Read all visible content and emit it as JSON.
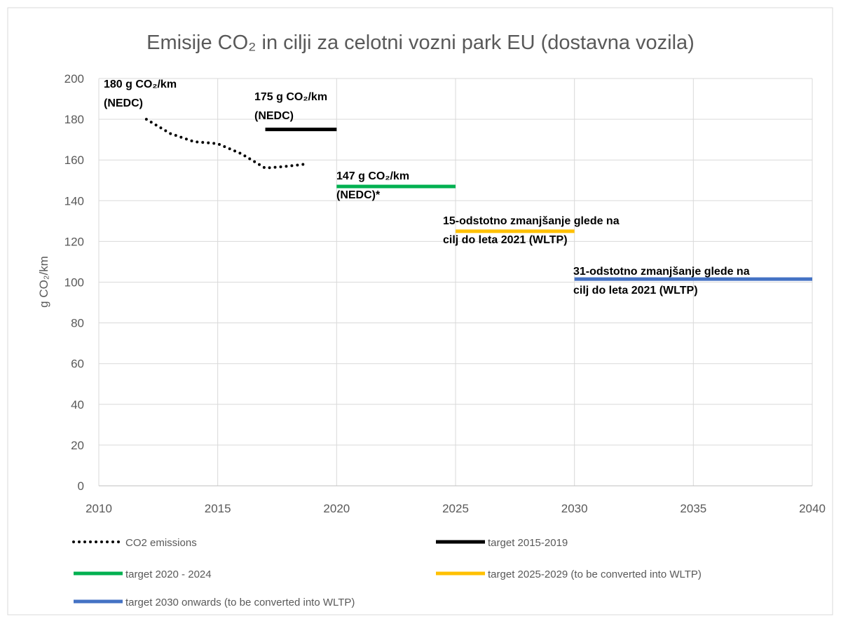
{
  "chart_data": {
    "type": "line",
    "title": "Emisije CO₂ in cilji za celotni vozni park EU (dostavna vozila)",
    "ylabel": "g CO₂/km",
    "series": [
      {
        "name": "CO2 emissions",
        "color": "#000000",
        "dash": "dotted",
        "x": [
          2012,
          2013,
          2014,
          2015,
          2016,
          2017,
          2018,
          2018.7
        ],
        "values": [
          180,
          173,
          169,
          168,
          163,
          156,
          157,
          158
        ]
      },
      {
        "name": "target 2015-2019",
        "color": "#000000",
        "x": [
          2017,
          2020
        ],
        "values": [
          175,
          175
        ]
      },
      {
        "name": "target 2020 - 2024",
        "color": "#00b050",
        "x": [
          2020,
          2025
        ],
        "values": [
          147,
          147
        ]
      },
      {
        "name": "target 2025-2029 (to be converted into WLTP)",
        "color": "#ffc000",
        "x": [
          2025,
          2030
        ],
        "values": [
          125,
          125
        ]
      },
      {
        "name": "target 2030 onwards (to be converted into WLTP)",
        "color": "#4472c4",
        "x": [
          2030,
          2040
        ],
        "values": [
          101.5,
          101.5
        ]
      }
    ],
    "annotations": [
      {
        "lines": [
          "180 g CO₂/km",
          "(NEDC)"
        ]
      },
      {
        "lines": [
          "175 g CO₂/km",
          "(NEDC)"
        ]
      },
      {
        "lines": [
          "147 g CO₂/km",
          "(NEDC)*"
        ]
      },
      {
        "lines": [
          "15-odstotno zmanjšanje glede na",
          "cilj do leta 2021 (WLTP)"
        ]
      },
      {
        "lines": [
          "31-odstotno zmanjšanje glede na",
          "cilj do leta 2021 (WLTP)"
        ]
      }
    ],
    "xlim": [
      2010,
      2040
    ],
    "xticks": [
      2010,
      2015,
      2020,
      2025,
      2030,
      2035,
      2040
    ],
    "ylim": [
      0,
      200
    ],
    "yticks": [
      0,
      20,
      40,
      60,
      80,
      100,
      120,
      140,
      160,
      180,
      200
    ],
    "grid": true
  }
}
